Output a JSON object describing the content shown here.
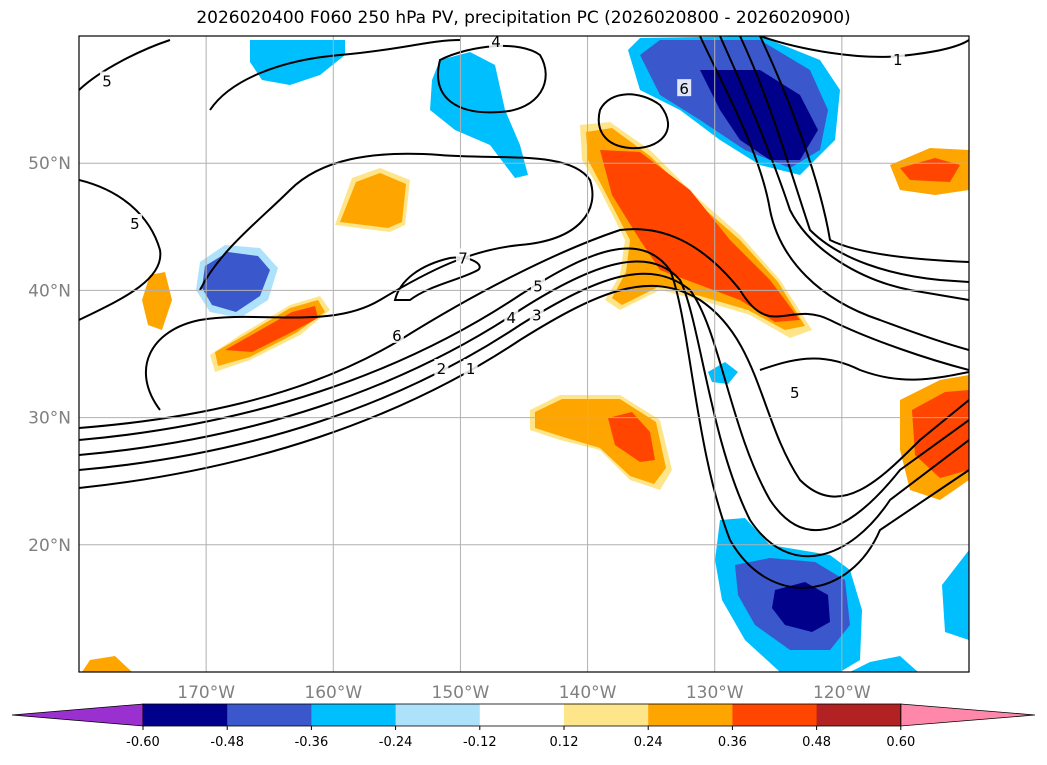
{
  "title": "2026020400 F060 250 hPa PV, precipitation PC (2026020800 - 2026020900)",
  "chart_data": {
    "type": "map-contour",
    "title": "2026020400 F060 250 hPa PV, precipitation PC (2026020800 - 2026020900)",
    "lon_ticks": [
      "170°W",
      "160°W",
      "150°W",
      "140°W",
      "130°W",
      "120°W"
    ],
    "lat_ticks": [
      "20°N",
      "30°N",
      "40°N",
      "50°N"
    ],
    "lon_range": [
      -180,
      -110
    ],
    "lat_range": [
      10,
      60
    ],
    "grid": true,
    "colorbar": {
      "orientation": "horizontal",
      "extend": "both",
      "ticks": [
        "-0.60",
        "-0.48",
        "-0.36",
        "-0.24",
        "-0.12",
        "0.12",
        "0.24",
        "0.36",
        "0.48",
        "0.60"
      ],
      "colors": [
        "#9b30d0",
        "#00008b",
        "#3a58cc",
        "#00bfff",
        "#aee2fb",
        "#ffffff",
        "#ffe58a",
        "#ffa500",
        "#ff4500",
        "#b22222",
        "#ff88aa"
      ]
    },
    "pv_contour_levels": [
      1,
      2,
      3,
      4,
      5,
      6,
      7
    ],
    "contour_labels": [
      {
        "text": "5",
        "lon": -177.8,
        "lat": 56.5
      },
      {
        "text": "4",
        "lon": -147.2,
        "lat": 59.6
      },
      {
        "text": "6",
        "lon": -132.4,
        "lat": 55.9
      },
      {
        "text": "1",
        "lon": -115.6,
        "lat": 58.2
      },
      {
        "text": "5",
        "lon": -175.6,
        "lat": 45.3
      },
      {
        "text": "7",
        "lon": -149.8,
        "lat": 42.6
      },
      {
        "text": "5",
        "lon": -143.9,
        "lat": 40.4
      },
      {
        "text": "4",
        "lon": -146.0,
        "lat": 37.9
      },
      {
        "text": "3",
        "lon": -144.0,
        "lat": 38.1
      },
      {
        "text": "6",
        "lon": -155.0,
        "lat": 36.5
      },
      {
        "text": "2",
        "lon": -151.5,
        "lat": 33.9
      },
      {
        "text": "1",
        "lon": -149.2,
        "lat": 33.9
      },
      {
        "text": "5",
        "lon": -123.7,
        "lat": 32.0
      }
    ]
  }
}
